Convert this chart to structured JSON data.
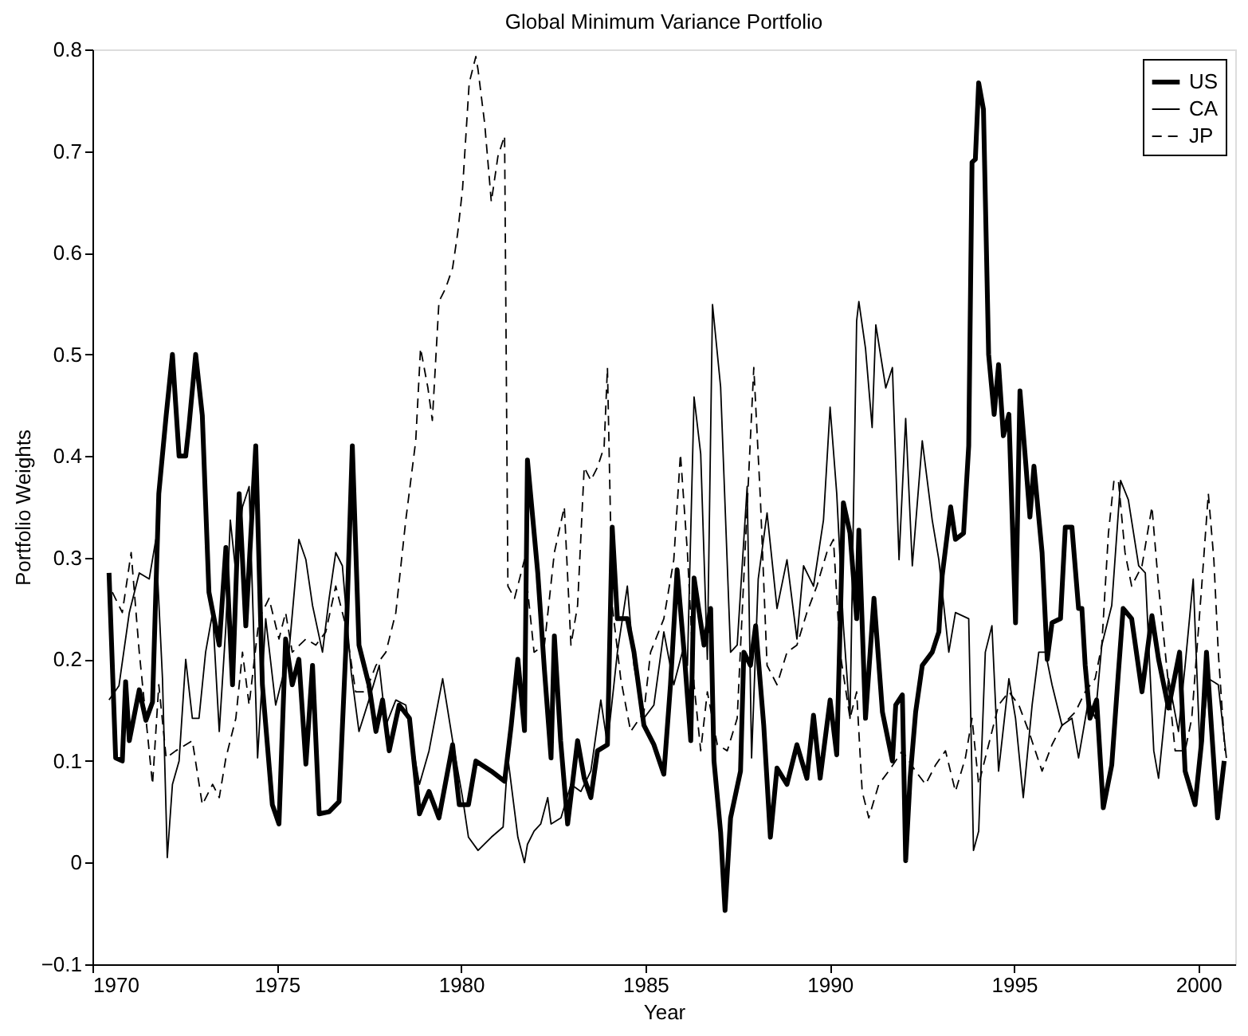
{
  "chart_data": {
    "type": "line",
    "title": "Global Minimum Variance Portfolio",
    "xlabel": "Year",
    "ylabel": "Portfolio Weights",
    "xlim": [
      1970,
      2001
    ],
    "xticks": [
      1970,
      1975,
      1980,
      1985,
      1990,
      1995,
      2000
    ],
    "ylim": [
      -0.1,
      0.8
    ],
    "yticks": [
      -0.1,
      0,
      0.1,
      0.2,
      0.3,
      0.4,
      0.5,
      0.6,
      0.7,
      0.8
    ],
    "grid": false,
    "legend": "top right",
    "marker": "none",
    "series": [
      {
        "name": "US",
        "color": "#000000",
        "line_style": "solid",
        "x": [
          1970.45,
          1970.63,
          1970.81,
          1970.9,
          1971.0,
          1971.27,
          1971.45,
          1971.63,
          1971.8,
          1972.0,
          1972.17,
          1972.35,
          1972.53,
          1972.62,
          1972.8,
          1972.98,
          1973.16,
          1973.44,
          1973.62,
          1973.8,
          1973.98,
          1974.16,
          1974.43,
          1974.61,
          1974.88,
          1975.06,
          1975.24,
          1975.42,
          1975.6,
          1975.79,
          1975.97,
          1976.15,
          1976.42,
          1976.69,
          1976.87,
          1977.05,
          1977.23,
          1977.5,
          1977.69,
          1977.87,
          1978.05,
          1978.32,
          1978.6,
          1978.87,
          1979.13,
          1979.4,
          1979.77,
          1979.95,
          1980.2,
          1980.4,
          1980.82,
          1981.18,
          1981.36,
          1981.54,
          1981.72,
          1981.8,
          1982.08,
          1982.26,
          1982.44,
          1982.53,
          1982.7,
          1982.89,
          1983.16,
          1983.34,
          1983.52,
          1983.7,
          1983.97,
          1984.1,
          1984.24,
          1984.51,
          1984.69,
          1984.96,
          1985.23,
          1985.5,
          1985.68,
          1985.86,
          1986.05,
          1986.23,
          1986.32,
          1986.59,
          1986.77,
          1986.86,
          1987.04,
          1987.16,
          1987.31,
          1987.58,
          1987.67,
          1987.85,
          1987.99,
          1988.21,
          1988.39,
          1988.57,
          1988.84,
          1989.11,
          1989.38,
          1989.56,
          1989.74,
          1990.01,
          1990.19,
          1990.37,
          1990.55,
          1990.73,
          1990.79,
          1990.97,
          1991.2,
          1991.43,
          1991.7,
          1991.79,
          1991.97,
          1992.06,
          1992.18,
          1992.33,
          1992.51,
          1992.78,
          1992.96,
          1993.05,
          1993.28,
          1993.41,
          1993.63,
          1993.77,
          1993.86,
          1993.95,
          1994.04,
          1994.17,
          1994.31,
          1994.46,
          1994.58,
          1994.71,
          1994.86,
          1995.04,
          1995.16,
          1995.31,
          1995.43,
          1995.54,
          1995.76,
          1995.9,
          1996.03,
          1996.26,
          1996.39,
          1996.57,
          1996.75,
          1996.84,
          1996.93,
          1997.06,
          1997.24,
          1997.42,
          1997.65,
          1997.83,
          1997.96,
          1998.19,
          1998.47,
          1998.74,
          1998.92,
          1999.19,
          1999.49,
          1999.64,
          1999.91,
          2000.09,
          2000.22,
          2000.36,
          2000.52,
          2000.7
        ],
        "values": [
          0.285,
          0.103,
          0.1,
          0.178,
          0.12,
          0.17,
          0.14,
          0.158,
          0.363,
          0.44,
          0.5,
          0.4,
          0.4,
          0.43,
          0.5,
          0.44,
          0.266,
          0.214,
          0.31,
          0.175,
          0.363,
          0.233,
          0.41,
          0.175,
          0.057,
          0.038,
          0.22,
          0.175,
          0.2,
          0.097,
          0.194,
          0.048,
          0.05,
          0.06,
          0.207,
          0.41,
          0.214,
          0.175,
          0.129,
          0.16,
          0.11,
          0.155,
          0.142,
          0.048,
          0.07,
          0.044,
          0.116,
          0.057,
          0.057,
          0.1,
          0.09,
          0.08,
          0.135,
          0.2,
          0.13,
          0.396,
          0.285,
          0.19,
          0.103,
          0.223,
          0.12,
          0.038,
          0.12,
          0.083,
          0.064,
          0.11,
          0.116,
          0.33,
          0.24,
          0.24,
          0.207,
          0.135,
          0.116,
          0.087,
          0.175,
          0.288,
          0.207,
          0.12,
          0.28,
          0.214,
          0.25,
          0.1,
          0.03,
          -0.047,
          0.044,
          0.09,
          0.207,
          0.194,
          0.233,
          0.135,
          0.025,
          0.093,
          0.077,
          0.116,
          0.083,
          0.145,
          0.083,
          0.16,
          0.106,
          0.354,
          0.324,
          0.24,
          0.327,
          0.142,
          0.26,
          0.148,
          0.1,
          0.155,
          0.165,
          0.002,
          0.083,
          0.148,
          0.194,
          0.207,
          0.227,
          0.282,
          0.35,
          0.318,
          0.324,
          0.41,
          0.689,
          0.692,
          0.767,
          0.741,
          0.5,
          0.441,
          0.49,
          0.42,
          0.441,
          0.236,
          0.464,
          0.396,
          0.34,
          0.39,
          0.305,
          0.2,
          0.236,
          0.24,
          0.33,
          0.33,
          0.25,
          0.25,
          0.194,
          0.142,
          0.16,
          0.054,
          0.096,
          0.187,
          0.25,
          0.24,
          0.168,
          0.243,
          0.2,
          0.152,
          0.207,
          0.09,
          0.057,
          0.12,
          0.207,
          0.13,
          0.044,
          0.1
        ]
      },
      {
        "name": "CA",
        "color": "#000000",
        "line_style": "solid",
        "x": [
          1970.45,
          1970.72,
          1971.0,
          1971.27,
          1971.54,
          1971.72,
          1971.9,
          1972.03,
          1972.17,
          1972.35,
          1972.53,
          1972.71,
          1972.89,
          1973.07,
          1973.26,
          1973.44,
          1973.62,
          1973.74,
          1973.89,
          1974.07,
          1974.25,
          1974.48,
          1974.7,
          1974.97,
          1975.33,
          1975.6,
          1975.79,
          1975.97,
          1976.24,
          1976.42,
          1976.6,
          1976.78,
          1977.02,
          1977.23,
          1977.5,
          1977.78,
          1977.96,
          1978.23,
          1978.5,
          1978.87,
          1979.13,
          1979.5,
          1979.77,
          1980.04,
          1980.2,
          1980.46,
          1980.82,
          1981.14,
          1981.27,
          1981.54,
          1981.72,
          1981.8,
          1981.98,
          1982.16,
          1982.35,
          1982.44,
          1982.71,
          1982.98,
          1983.25,
          1983.52,
          1983.79,
          1983.97,
          1984.24,
          1984.51,
          1984.69,
          1984.96,
          1985.23,
          1985.5,
          1985.77,
          1986.0,
          1986.14,
          1986.32,
          1986.5,
          1986.68,
          1986.82,
          1987.04,
          1987.31,
          1987.49,
          1987.76,
          1987.88,
          1988.06,
          1988.3,
          1988.57,
          1988.84,
          1989.11,
          1989.29,
          1989.56,
          1989.83,
          1990.01,
          1990.19,
          1990.37,
          1990.55,
          1990.73,
          1990.79,
          1990.97,
          1991.15,
          1991.25,
          1991.52,
          1991.7,
          1991.88,
          1992.06,
          1992.24,
          1992.51,
          1992.78,
          1992.96,
          1993.23,
          1993.41,
          1993.77,
          1993.9,
          1994.04,
          1994.22,
          1994.4,
          1994.58,
          1994.86,
          1995.04,
          1995.25,
          1995.49,
          1995.67,
          1995.85,
          1996.03,
          1996.3,
          1996.57,
          1996.75,
          1997.02,
          1997.2,
          1997.38,
          1997.65,
          1997.89,
          1998.1,
          1998.38,
          1998.56,
          1998.79,
          1998.92,
          1999.19,
          1999.46,
          1999.64,
          1999.86,
          2000.05,
          2000.27,
          2000.54,
          2000.76
        ],
        "values": [
          0.16,
          0.174,
          0.246,
          0.285,
          0.279,
          0.318,
          0.181,
          0.005,
          0.077,
          0.1,
          0.2,
          0.142,
          0.142,
          0.207,
          0.246,
          0.129,
          0.233,
          0.337,
          0.285,
          0.35,
          0.37,
          0.103,
          0.24,
          0.155,
          0.207,
          0.318,
          0.298,
          0.253,
          0.207,
          0.26,
          0.305,
          0.292,
          0.187,
          0.129,
          0.16,
          0.194,
          0.135,
          0.16,
          0.155,
          0.077,
          0.11,
          0.181,
          0.12,
          0.064,
          0.025,
          0.012,
          0.025,
          0.035,
          0.103,
          0.025,
          0.0,
          0.018,
          0.031,
          0.038,
          0.064,
          0.038,
          0.044,
          0.077,
          0.07,
          0.09,
          0.16,
          0.116,
          0.207,
          0.272,
          0.194,
          0.142,
          0.155,
          0.227,
          0.175,
          0.207,
          0.194,
          0.458,
          0.402,
          0.2,
          0.549,
          0.468,
          0.207,
          0.214,
          0.37,
          0.103,
          0.279,
          0.344,
          0.25,
          0.298,
          0.22,
          0.292,
          0.272,
          0.337,
          0.448,
          0.363,
          0.233,
          0.142,
          0.533,
          0.552,
          0.506,
          0.428,
          0.529,
          0.467,
          0.487,
          0.298,
          0.437,
          0.292,
          0.415,
          0.337,
          0.298,
          0.207,
          0.246,
          0.24,
          0.012,
          0.031,
          0.207,
          0.233,
          0.09,
          0.181,
          0.142,
          0.064,
          0.155,
          0.207,
          0.207,
          0.175,
          0.135,
          0.142,
          0.103,
          0.16,
          0.142,
          0.214,
          0.253,
          0.376,
          0.357,
          0.292,
          0.285,
          0.11,
          0.083,
          0.181,
          0.129,
          0.194,
          0.279,
          0.103,
          0.181,
          0.175,
          0.103
        ]
      },
      {
        "name": "JP",
        "color": "#000000",
        "line_style": "dashed",
        "x": [
          1970.54,
          1970.81,
          1971.05,
          1971.27,
          1971.45,
          1971.63,
          1971.8,
          1972.0,
          1972.26,
          1972.71,
          1972.98,
          1973.26,
          1973.44,
          1973.62,
          1973.89,
          1974.07,
          1974.25,
          1974.52,
          1974.79,
          1975.06,
          1975.24,
          1975.42,
          1975.79,
          1976.06,
          1976.33,
          1976.6,
          1976.87,
          1977.14,
          1977.41,
          1977.69,
          1977.96,
          1978.23,
          1978.5,
          1978.77,
          1978.9,
          1979.1,
          1979.22,
          1979.4,
          1979.58,
          1979.77,
          1979.91,
          1980.04,
          1980.22,
          1980.4,
          1980.46,
          1980.64,
          1980.82,
          1981.0,
          1981.18,
          1981.27,
          1981.45,
          1981.72,
          1981.98,
          1982.26,
          1982.53,
          1982.8,
          1982.98,
          1983.16,
          1983.34,
          1983.52,
          1983.7,
          1983.88,
          1983.97,
          1984.1,
          1984.33,
          1984.6,
          1984.96,
          1985.14,
          1985.5,
          1985.77,
          1985.95,
          1986.14,
          1986.32,
          1986.5,
          1986.68,
          1986.95,
          1987.22,
          1987.49,
          1987.76,
          1987.94,
          1988.12,
          1988.3,
          1988.57,
          1988.84,
          1989.11,
          1989.38,
          1989.65,
          1989.92,
          1990.1,
          1990.28,
          1990.55,
          1990.73,
          1990.88,
          1991.06,
          1991.33,
          1991.6,
          1991.97,
          1992.33,
          1992.6,
          1992.87,
          1993.14,
          1993.41,
          1993.68,
          1993.86,
          1994.04,
          1994.31,
          1994.58,
          1994.86,
          1995.13,
          1995.4,
          1995.76,
          1996.03,
          1996.3,
          1996.66,
          1996.93,
          1997.2,
          1997.38,
          1997.56,
          1997.71,
          1997.83,
          1998.01,
          1998.19,
          1998.47,
          1998.74,
          1998.92,
          1999.19,
          1999.37,
          1999.64,
          1999.82,
          2000.09,
          2000.27,
          2000.42,
          2000.54,
          2000.72
        ],
        "values": [
          0.266,
          0.246,
          0.305,
          0.207,
          0.142,
          0.077,
          0.175,
          0.103,
          0.11,
          0.12,
          0.057,
          0.077,
          0.064,
          0.103,
          0.142,
          0.207,
          0.155,
          0.24,
          0.26,
          0.22,
          0.246,
          0.207,
          0.22,
          0.214,
          0.227,
          0.272,
          0.233,
          0.168,
          0.168,
          0.194,
          0.207,
          0.246,
          0.337,
          0.415,
          0.506,
          0.467,
          0.435,
          0.552,
          0.565,
          0.585,
          0.62,
          0.663,
          0.767,
          0.793,
          0.78,
          0.727,
          0.65,
          0.695,
          0.715,
          0.272,
          0.26,
          0.298,
          0.207,
          0.214,
          0.305,
          0.35,
          0.214,
          0.253,
          0.389,
          0.376,
          0.389,
          0.409,
          0.487,
          0.253,
          0.181,
          0.129,
          0.148,
          0.207,
          0.24,
          0.298,
          0.402,
          0.305,
          0.175,
          0.11,
          0.168,
          0.116,
          0.11,
          0.142,
          0.35,
          0.487,
          0.357,
          0.194,
          0.175,
          0.207,
          0.214,
          0.246,
          0.272,
          0.305,
          0.318,
          0.207,
          0.142,
          0.168,
          0.07,
          0.044,
          0.077,
          0.09,
          0.11,
          0.09,
          0.077,
          0.096,
          0.11,
          0.07,
          0.103,
          0.142,
          0.077,
          0.116,
          0.155,
          0.168,
          0.155,
          0.129,
          0.09,
          0.116,
          0.135,
          0.148,
          0.168,
          0.181,
          0.214,
          0.324,
          0.376,
          0.376,
          0.305,
          0.272,
          0.292,
          0.35,
          0.272,
          0.175,
          0.11,
          0.11,
          0.142,
          0.272,
          0.363,
          0.298,
          0.207,
          0.11
        ]
      }
    ]
  }
}
